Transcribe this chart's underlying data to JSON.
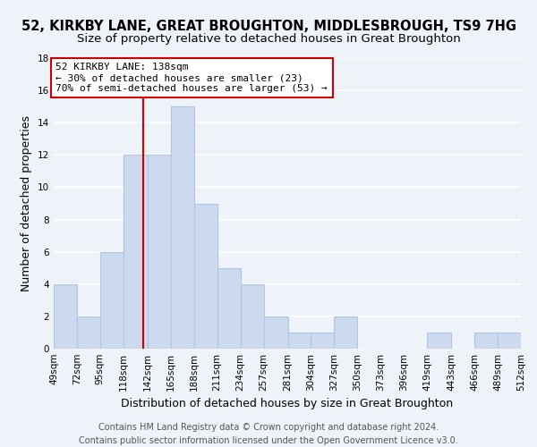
{
  "title": "52, KIRKBY LANE, GREAT BROUGHTON, MIDDLESBROUGH, TS9 7HG",
  "subtitle": "Size of property relative to detached houses in Great Broughton",
  "xlabel": "Distribution of detached houses by size in Great Broughton",
  "ylabel": "Number of detached properties",
  "bin_edges": [
    49,
    72,
    95,
    118,
    142,
    165,
    188,
    211,
    234,
    257,
    281,
    304,
    327,
    350,
    373,
    396,
    419,
    443,
    466,
    489,
    512
  ],
  "counts": [
    4,
    2,
    6,
    12,
    12,
    15,
    9,
    5,
    4,
    2,
    1,
    1,
    2,
    0,
    0,
    0,
    1,
    0,
    1,
    1
  ],
  "bar_color": "#ccd9ee",
  "bar_edge_color": "#aec6e8",
  "vline_x": 138,
  "vline_color": "#cc0000",
  "annotation_line1": "52 KIRKBY LANE: 138sqm",
  "annotation_line2": "← 30% of detached houses are smaller (23)",
  "annotation_line3": "70% of semi-detached houses are larger (53) →",
  "annotation_box_edge_color": "#cc0000",
  "annotation_box_face_color": "#ffffff",
  "ylim": [
    0,
    18
  ],
  "yticks": [
    0,
    2,
    4,
    6,
    8,
    10,
    12,
    14,
    16,
    18
  ],
  "tick_labels": [
    "49sqm",
    "72sqm",
    "95sqm",
    "118sqm",
    "142sqm",
    "165sqm",
    "188sqm",
    "211sqm",
    "234sqm",
    "257sqm",
    "281sqm",
    "304sqm",
    "327sqm",
    "350sqm",
    "373sqm",
    "396sqm",
    "419sqm",
    "443sqm",
    "466sqm",
    "489sqm",
    "512sqm"
  ],
  "footer_line1": "Contains HM Land Registry data © Crown copyright and database right 2024.",
  "footer_line2": "Contains public sector information licensed under the Open Government Licence v3.0.",
  "background_color": "#eef2f9",
  "grid_color": "#ffffff",
  "title_fontsize": 10.5,
  "subtitle_fontsize": 9.5,
  "axis_label_fontsize": 9,
  "tick_fontsize": 7.5,
  "annotation_fontsize": 8,
  "footer_fontsize": 7
}
